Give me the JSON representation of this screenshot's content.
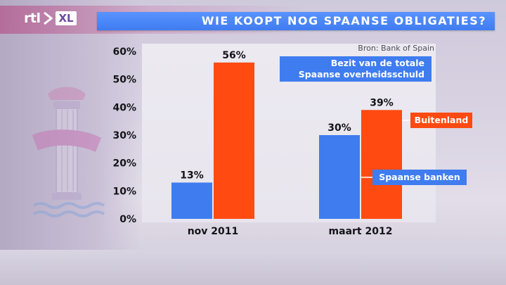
{
  "header": {
    "logo_text": "rtl",
    "logo_badge": "XL",
    "title": "WIE KOOPT NOG SPAANSE OBLIGATIES?"
  },
  "source": "Bron: Bank of Spain",
  "legend": {
    "line1": "Bezit van de totale",
    "line2": "Spaanse overheidsschuld"
  },
  "colors": {
    "banks": "#3f7cf0",
    "foreign": "#ff4a12",
    "title_bar": "#4a86f8"
  },
  "chart_data": {
    "type": "bar",
    "categories": [
      "nov 2011",
      "maart 2012"
    ],
    "series": [
      {
        "name": "Spaanse banken",
        "values": [
          13,
          30
        ],
        "labels": [
          "13%",
          "30%"
        ],
        "color": "#3f7cf0"
      },
      {
        "name": "Buitenland",
        "values": [
          56,
          39
        ],
        "labels": [
          "56%",
          "39%"
        ],
        "color": "#ff4a12"
      }
    ],
    "yticks": [
      "0%",
      "10%",
      "20%",
      "30%",
      "40%",
      "50%",
      "60%"
    ],
    "ylim": [
      0,
      60
    ],
    "grid": false,
    "title": "WIE KOOPT NOG SPAANSE OBLIGATIES?"
  }
}
